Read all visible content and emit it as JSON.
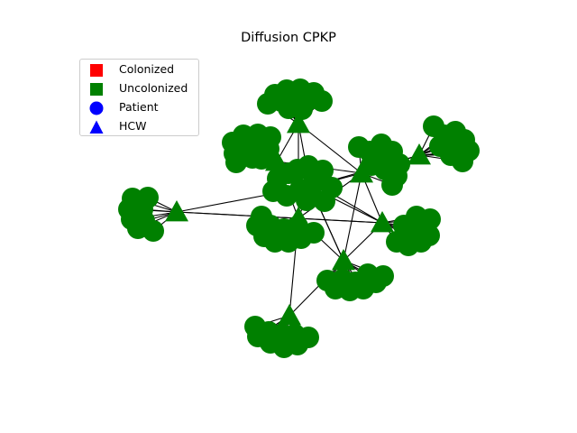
{
  "title": "Diffusion CPKP",
  "legend": {
    "items": [
      {
        "label": "Colonized",
        "marker": "square",
        "color": "#ff0000"
      },
      {
        "label": "Uncolonized",
        "marker": "square",
        "color": "#008000"
      },
      {
        "label": "Patient",
        "marker": "circle",
        "color": "#0000ff"
      },
      {
        "label": "HCW",
        "marker": "triangle",
        "color": "#0000ff"
      }
    ]
  },
  "colors": {
    "node": "#008000",
    "edge": "#000000"
  }
}
